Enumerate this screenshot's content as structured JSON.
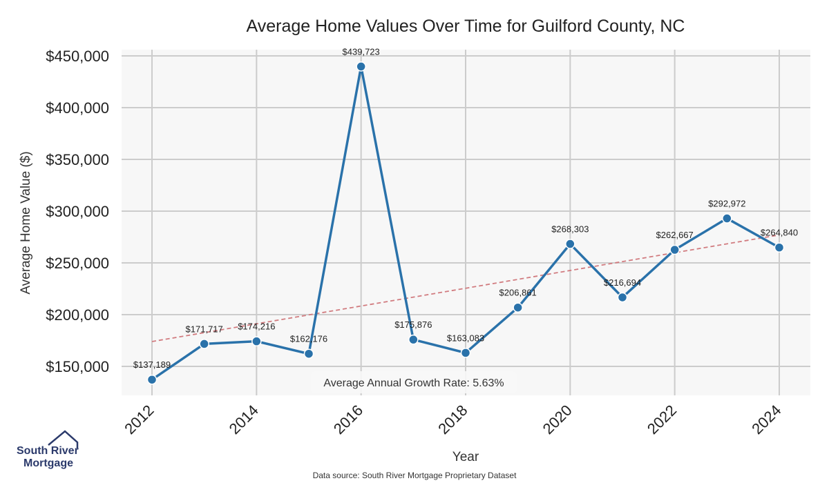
{
  "chart_data": {
    "type": "line",
    "title": "Average Home Values Over Time for Guilford County, NC",
    "xlabel": "Year",
    "ylabel": "Average Home Value ($)",
    "x": [
      2012,
      2013,
      2014,
      2015,
      2016,
      2017,
      2018,
      2019,
      2020,
      2021,
      2022,
      2023,
      2024
    ],
    "values": [
      137189,
      171717,
      174216,
      162176,
      439723,
      175876,
      163083,
      206861,
      268303,
      216694,
      262667,
      292972,
      264840
    ],
    "data_labels": [
      "$137,189",
      "$171,717",
      "$174,216",
      "$162,176",
      "$439,723",
      "$175,876",
      "$163,083",
      "$206,861",
      "$268,303",
      "$216,694",
      "$262,667",
      "$292,972",
      "$264,840"
    ],
    "x_ticks": [
      "2012",
      "2014",
      "2016",
      "2018",
      "2020",
      "2022",
      "2024"
    ],
    "y_ticks": [
      150000,
      200000,
      250000,
      300000,
      350000,
      400000,
      450000
    ],
    "y_tick_labels": [
      "$150,000",
      "$200,000",
      "$250,000",
      "$300,000",
      "$350,000",
      "$400,000",
      "$450,000"
    ],
    "ylim": [
      121000,
      450000
    ],
    "trendline": {
      "x": [
        2012,
        2024
      ],
      "y": [
        174000,
        277000
      ],
      "style": "dashed"
    },
    "annotation": "Average Annual Growth Rate: 5.63%",
    "grid": true,
    "colors": {
      "line": "#2a72aa",
      "trend": "#d17b7f",
      "plot_bg": "#f7f7f7",
      "grid": "#cccccc"
    }
  },
  "source_note": "Data source: South River Mortgage Proprietary Dataset",
  "logo": {
    "line1": "South River",
    "line2": "Mortgage"
  }
}
